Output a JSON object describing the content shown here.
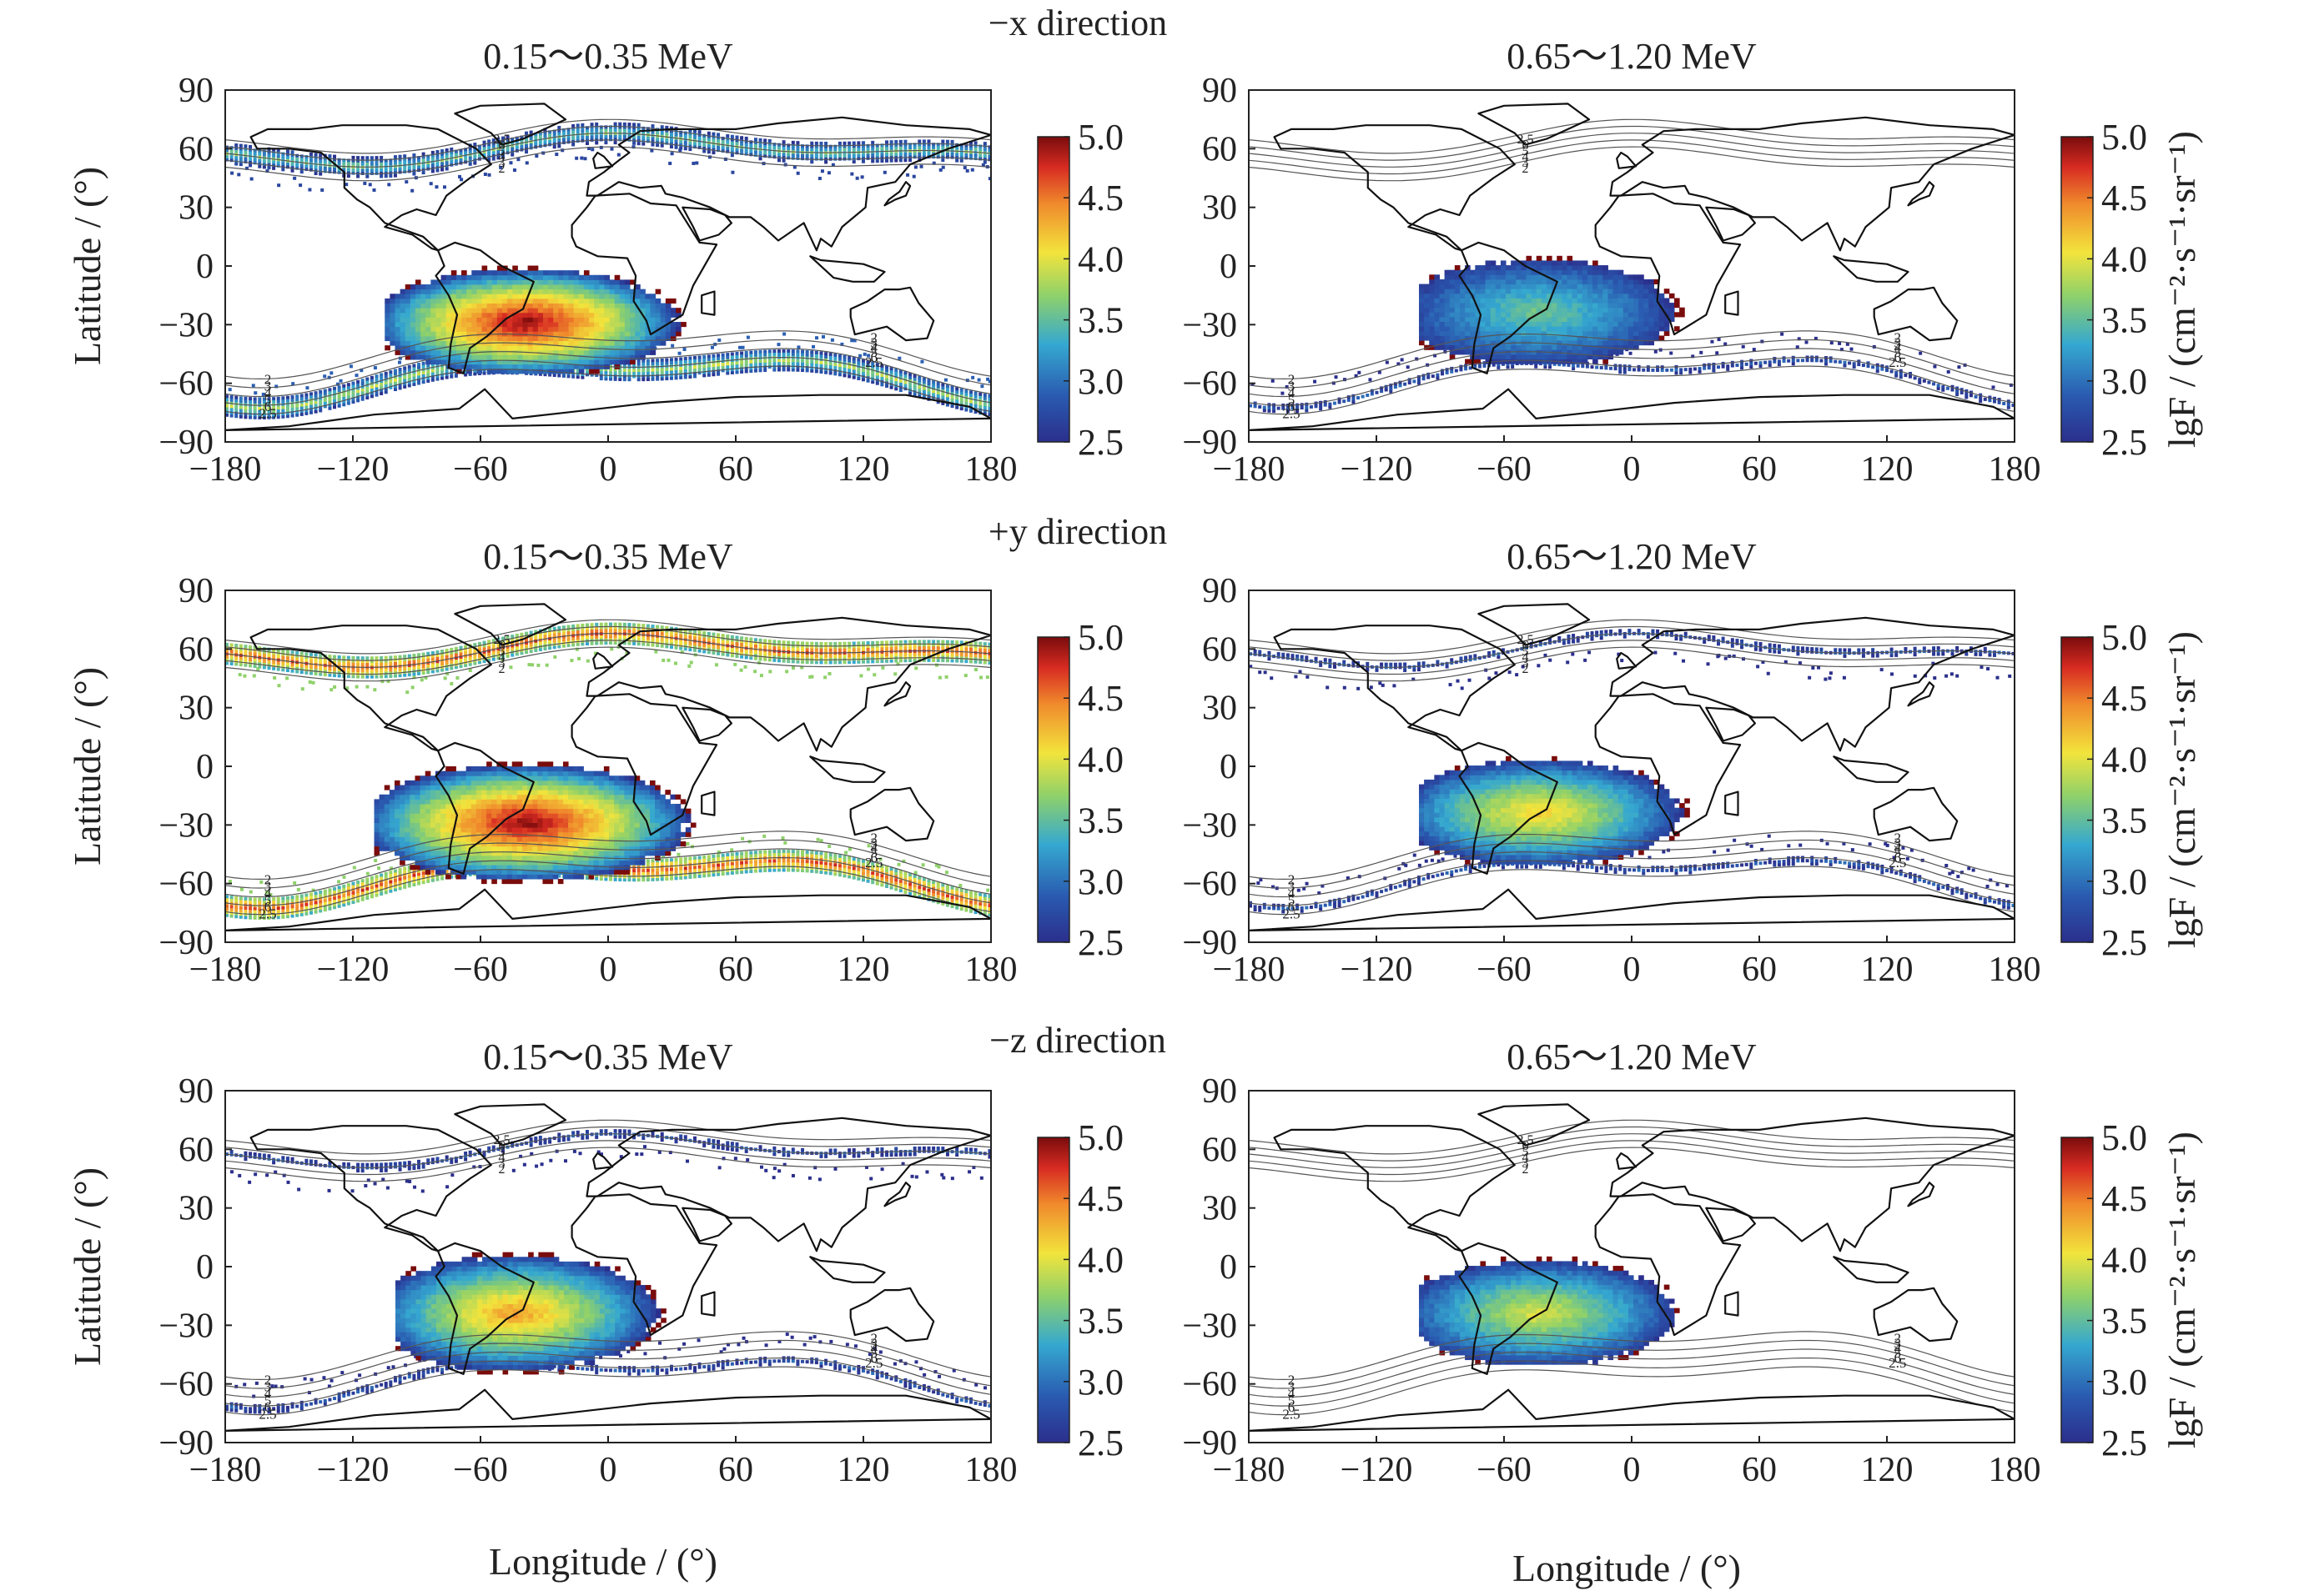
{
  "figure": {
    "row_titles": [
      "−x direction",
      "+y direction",
      "−z direction"
    ],
    "x_label": "Longitude / (°)",
    "y_label": "Latitude / (°)",
    "colorbar_label": "lgF / (cm⁻²·s⁻¹·sr⁻¹)",
    "panel_titles": [
      "0.15～0.35 MeV",
      "0.65～1.20 MeV"
    ]
  },
  "chart_data": [
    {
      "type": "heatmap",
      "row": 0,
      "col": 0,
      "direction": "−x direction",
      "title": "0.15～0.35 MeV",
      "xlabel": "",
      "ylabel": "Latitude / (°)",
      "xlim": [
        -180,
        180
      ],
      "ylim": [
        -90,
        90
      ],
      "xticks": [
        -180,
        -120,
        -60,
        0,
        60,
        120,
        180
      ],
      "yticks": [
        90,
        60,
        30,
        0,
        -30,
        -60,
        -90
      ],
      "colorbar": {
        "min": 2.5,
        "max": 5.0,
        "ticks": [
          5.0,
          4.5,
          4.0,
          3.5,
          3.0,
          2.5
        ],
        "label": ""
      },
      "contour_labels": [
        "2",
        "3",
        "4",
        "5",
        "6",
        "2.5"
      ],
      "features": {
        "saa": {
          "center_lon": -40,
          "center_lat": -30,
          "lon_span": [
            -105,
            40
          ],
          "lat_span": [
            -55,
            0
          ],
          "peak": 5.0
        },
        "north_belt": {
          "level": 3.6,
          "band_lat": 60
        },
        "south_belt": {
          "level": 3.8,
          "band_lat": -58
        }
      }
    },
    {
      "type": "heatmap",
      "row": 0,
      "col": 1,
      "direction": "−x direction",
      "title": "0.65～1.20 MeV",
      "xlabel": "",
      "ylabel": "",
      "xlim": [
        -180,
        180
      ],
      "ylim": [
        -90,
        90
      ],
      "xticks": [
        -180,
        -120,
        -60,
        0,
        60,
        120,
        180
      ],
      "yticks": [
        90,
        60,
        30,
        0,
        -30,
        -60,
        -90
      ],
      "colorbar": {
        "min": 2.5,
        "max": 5.0,
        "ticks": [
          5.0,
          4.5,
          4.0,
          3.5,
          3.0,
          2.5
        ],
        "label": "lgF / (cm⁻²·s⁻¹·sr⁻¹)"
      },
      "contour_labels": [
        "2",
        "3",
        "4",
        "5",
        "6",
        "2.5"
      ],
      "features": {
        "saa": {
          "center_lon": -45,
          "center_lat": -25,
          "lon_span": [
            -100,
            30
          ],
          "lat_span": [
            -50,
            5
          ],
          "peak": 3.6
        },
        "north_belt": {
          "level": 0,
          "band_lat": 60
        },
        "south_belt": {
          "level": 2.8,
          "band_lat": -68
        }
      }
    },
    {
      "type": "heatmap",
      "row": 1,
      "col": 0,
      "direction": "+y direction",
      "title": "0.15～0.35 MeV",
      "xlabel": "",
      "ylabel": "Latitude / (°)",
      "xlim": [
        -180,
        180
      ],
      "ylim": [
        -90,
        90
      ],
      "xticks": [
        -180,
        -120,
        -60,
        0,
        60,
        120,
        180
      ],
      "yticks": [
        90,
        60,
        30,
        0,
        -30,
        -60,
        -90
      ],
      "colorbar": {
        "min": 2.5,
        "max": 5.0,
        "ticks": [
          5.0,
          4.5,
          4.0,
          3.5,
          3.0,
          2.5
        ],
        "label": ""
      },
      "contour_labels": [
        "2",
        "3",
        "4",
        "5",
        "6",
        "2.5"
      ],
      "features": {
        "saa": {
          "center_lon": -40,
          "center_lat": -30,
          "lon_span": [
            -110,
            45
          ],
          "lat_span": [
            -60,
            0
          ],
          "peak": 5.0
        },
        "north_belt": {
          "level": 4.6,
          "band_lat": 62
        },
        "south_belt": {
          "level": 4.6,
          "band_lat": -58
        }
      }
    },
    {
      "type": "heatmap",
      "row": 1,
      "col": 1,
      "direction": "+y direction",
      "title": "0.65～1.20 MeV",
      "xlabel": "",
      "ylabel": "",
      "xlim": [
        -180,
        180
      ],
      "ylim": [
        -90,
        90
      ],
      "xticks": [
        -180,
        -120,
        -60,
        0,
        60,
        120,
        180
      ],
      "yticks": [
        90,
        60,
        30,
        0,
        -30,
        -60,
        -90
      ],
      "colorbar": {
        "min": 2.5,
        "max": 5.0,
        "ticks": [
          5.0,
          4.5,
          4.0,
          3.5,
          3.0,
          2.5
        ],
        "label": "lgF / (cm⁻²·s⁻¹·sr⁻¹)"
      },
      "contour_labels": [
        "2",
        "3",
        "4",
        "5",
        "6",
        "2.5"
      ],
      "features": {
        "saa": {
          "center_lon": -45,
          "center_lat": -25,
          "lon_span": [
            -100,
            35
          ],
          "lat_span": [
            -50,
            5
          ],
          "peak": 4.2
        },
        "north_belt": {
          "level": 2.8,
          "band_lat": 64
        },
        "south_belt": {
          "level": 2.8,
          "band_lat": -62
        }
      }
    },
    {
      "type": "heatmap",
      "row": 2,
      "col": 0,
      "direction": "−z direction",
      "title": "0.15～0.35 MeV",
      "xlabel": "Longitude / (°)",
      "ylabel": "Latitude / (°)",
      "xlim": [
        -180,
        180
      ],
      "ylim": [
        -90,
        90
      ],
      "xticks": [
        -180,
        -120,
        -60,
        0,
        60,
        120,
        180
      ],
      "yticks": [
        90,
        60,
        30,
        0,
        -30,
        -60,
        -90
      ],
      "colorbar": {
        "min": 2.5,
        "max": 5.0,
        "ticks": [
          5.0,
          4.5,
          4.0,
          3.5,
          3.0,
          2.5
        ],
        "label": ""
      },
      "contour_labels": [
        "2",
        "3",
        "4",
        "5",
        "6",
        "2.5"
      ],
      "features": {
        "saa": {
          "center_lon": -45,
          "center_lat": -25,
          "lon_span": [
            -100,
            35
          ],
          "lat_span": [
            -55,
            5
          ],
          "peak": 4.4
        },
        "north_belt": {
          "level": 2.8,
          "band_lat": 65
        },
        "south_belt": {
          "level": 2.8,
          "band_lat": -62
        }
      }
    },
    {
      "type": "heatmap",
      "row": 2,
      "col": 1,
      "direction": "−z direction",
      "title": "0.65～1.20 MeV",
      "xlabel": "Longitude / (°)",
      "ylabel": "",
      "xlim": [
        -180,
        180
      ],
      "ylim": [
        -90,
        90
      ],
      "xticks": [
        -180,
        -120,
        -60,
        0,
        60,
        120,
        180
      ],
      "yticks": [
        90,
        60,
        30,
        0,
        -30,
        -60,
        -90
      ],
      "colorbar": {
        "min": 2.5,
        "max": 5.0,
        "ticks": [
          5.0,
          4.5,
          4.0,
          3.5,
          3.0,
          2.5
        ],
        "label": "lgF / (cm⁻²·s⁻¹·sr⁻¹)"
      },
      "contour_labels": [
        "2",
        "3",
        "4",
        "5",
        "6",
        "2.5"
      ],
      "features": {
        "saa": {
          "center_lon": -45,
          "center_lat": -25,
          "lon_span": [
            -100,
            30
          ],
          "lat_span": [
            -50,
            5
          ],
          "peak": 4.0
        },
        "north_belt": {
          "level": 0,
          "band_lat": 60
        },
        "south_belt": {
          "level": 0,
          "band_lat": -60
        }
      }
    }
  ]
}
